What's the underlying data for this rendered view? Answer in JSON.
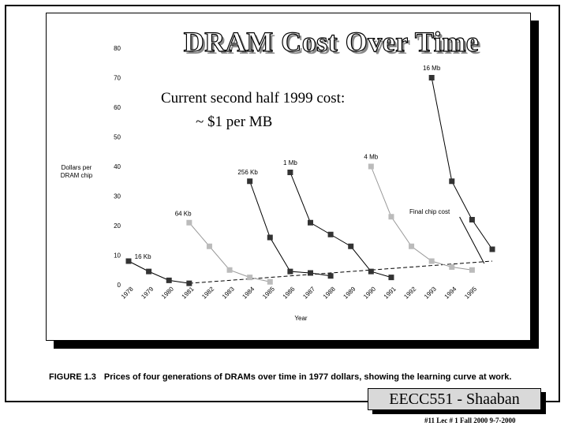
{
  "slide": {
    "title": "DRAM Cost Over Time",
    "subtitle_line1": "Current second half 1999 cost:",
    "subtitle_line2": "~ $1  per MB",
    "caption_label": "FIGURE 1.3",
    "caption_text": "Prices of four generations of DRAMs over time in 1977 dollars, showing the learning curve at work.",
    "footer_label": "EECC551 - Shaaban",
    "footer_note": "#11  Lec # 1  Fall 2000  9-7-2000"
  },
  "colors": {
    "dark": "#333333",
    "light": "#bbbbbb",
    "line_dark": "#000000",
    "line_light": "#999999"
  },
  "chart_data": {
    "type": "line",
    "ylabel": "Dollars per DRAM chip",
    "ylabel_lines": [
      "Dollars per",
      "DRAM chip"
    ],
    "xlabel": "Year",
    "ylim": [
      0,
      80
    ],
    "xlim": [
      1978,
      1996
    ],
    "yticks": [
      0,
      10,
      20,
      30,
      40,
      50,
      60,
      70,
      80
    ],
    "categories": [
      "1978",
      "1979",
      "1980",
      "1981",
      "1982",
      "1983",
      "1984",
      "1985",
      "1986",
      "1987",
      "1988",
      "1989",
      "1990",
      "1991",
      "1992",
      "1993",
      "1994",
      "1995"
    ],
    "series": [
      {
        "name": "16 Kb",
        "tone": "dark",
        "x": [
          1978,
          1979,
          1980,
          1981
        ],
        "values": [
          8,
          4.5,
          1.5,
          0.5
        ]
      },
      {
        "name": "64 Kb",
        "tone": "light",
        "x": [
          1981,
          1982,
          1983,
          1984,
          1985
        ],
        "values": [
          21,
          13,
          5,
          2.5,
          1
        ]
      },
      {
        "name": "256 Kb",
        "tone": "dark",
        "x": [
          1984,
          1985,
          1986,
          1987,
          1988
        ],
        "values": [
          35,
          16,
          4.5,
          4,
          3
        ]
      },
      {
        "name": "1 Mb",
        "tone": "dark",
        "x": [
          1986,
          1987,
          1988,
          1989,
          1990,
          1991
        ],
        "values": [
          38,
          21,
          17,
          13,
          4.5,
          2.5
        ]
      },
      {
        "name": "4 Mb",
        "tone": "light",
        "x": [
          1990,
          1991,
          1992,
          1993,
          1994,
          1995
        ],
        "values": [
          40,
          23,
          13,
          8,
          6,
          5
        ]
      },
      {
        "name": "16 Mb",
        "tone": "dark",
        "x": [
          1993,
          1994,
          1995,
          1996
        ],
        "values": [
          70,
          35,
          22,
          12
        ]
      }
    ],
    "trend_line": {
      "name": "Final chip cost",
      "x": [
        1981,
        1996
      ],
      "values": [
        0.5,
        8
      ]
    },
    "annotations": [
      {
        "text": "16 Kb",
        "x": 1978.3,
        "y": 8.8,
        "anchor": "start"
      },
      {
        "text": "64 Kb",
        "x": 1980.7,
        "y": 23.4,
        "anchor": "middle"
      },
      {
        "text": "256 Kb",
        "x": 1983.9,
        "y": 37.4,
        "anchor": "middle"
      },
      {
        "text": "1 Mb",
        "x": 1986,
        "y": 40.5,
        "anchor": "middle"
      },
      {
        "text": "4 Mb",
        "x": 1990,
        "y": 42.5,
        "anchor": "middle"
      },
      {
        "text": "16 Mb",
        "x": 1993,
        "y": 72.5,
        "anchor": "middle"
      },
      {
        "text": "Final chip cost",
        "x": 1992.9,
        "y": 24,
        "anchor": "middle"
      }
    ]
  }
}
